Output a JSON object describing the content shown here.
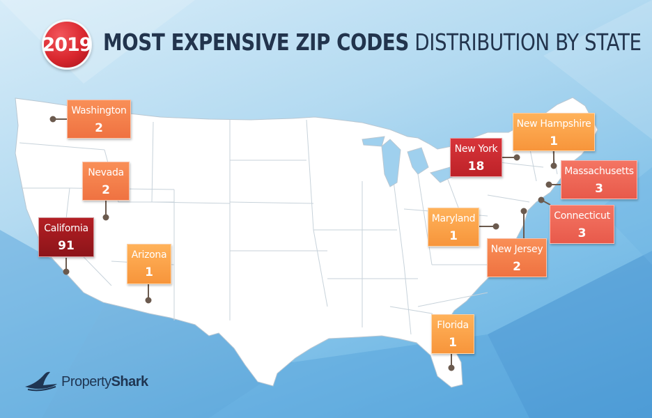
{
  "header": {
    "year": "2019",
    "title_bold": "MOST EXPENSIVE ZIP CODES",
    "title_regular": "DISTRIBUTION BY STATE"
  },
  "states": [
    {
      "name": "Washington",
      "count": "2",
      "tier": "mid"
    },
    {
      "name": "Nevada",
      "count": "2",
      "tier": "mid"
    },
    {
      "name": "California",
      "count": "91",
      "tier": "dark"
    },
    {
      "name": "Arizona",
      "count": "1",
      "tier": "light"
    },
    {
      "name": "New York",
      "count": "18",
      "tier": "red"
    },
    {
      "name": "New Hampshire",
      "count": "1",
      "tier": "light"
    },
    {
      "name": "Massachusetts",
      "count": "3",
      "tier": "coral"
    },
    {
      "name": "Maryland",
      "count": "1",
      "tier": "light"
    },
    {
      "name": "Connecticut",
      "count": "3",
      "tier": "coral"
    },
    {
      "name": "New Jersey",
      "count": "2",
      "tier": "mid"
    },
    {
      "name": "Florida",
      "count": "1",
      "tier": "light"
    }
  ],
  "brand": {
    "name_regular": "Property",
    "name_bold": "Shark",
    "icon": "shark-fin-icon"
  },
  "colors": {
    "title": "#22344d",
    "badge": "#d9272e",
    "tier_light": "#f7953b",
    "tier_mid": "#ef7241",
    "tier_coral": "#e85a4b",
    "tier_red": "#bd2228",
    "tier_dark": "#8c1419",
    "pin": "#6b5a4e"
  }
}
